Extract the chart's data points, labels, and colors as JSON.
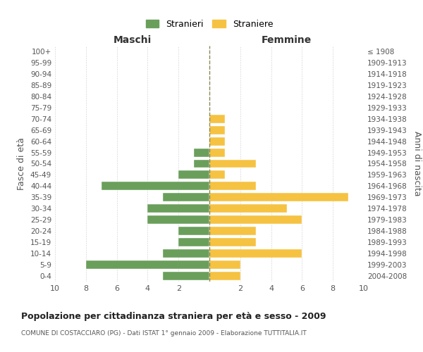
{
  "age_groups": [
    "100+",
    "95-99",
    "90-94",
    "85-89",
    "80-84",
    "75-79",
    "70-74",
    "65-69",
    "60-64",
    "55-59",
    "50-54",
    "45-49",
    "40-44",
    "35-39",
    "30-34",
    "25-29",
    "20-24",
    "15-19",
    "10-14",
    "5-9",
    "0-4"
  ],
  "birth_years": [
    "≤ 1908",
    "1909-1913",
    "1914-1918",
    "1919-1923",
    "1924-1928",
    "1929-1933",
    "1934-1938",
    "1939-1943",
    "1944-1948",
    "1949-1953",
    "1954-1958",
    "1959-1963",
    "1964-1968",
    "1969-1973",
    "1974-1978",
    "1979-1983",
    "1984-1988",
    "1989-1993",
    "1994-1998",
    "1999-2003",
    "2004-2008"
  ],
  "males": [
    0,
    0,
    0,
    0,
    0,
    0,
    0,
    0,
    0,
    1,
    1,
    2,
    7,
    3,
    4,
    4,
    2,
    2,
    3,
    8,
    3
  ],
  "females": [
    0,
    0,
    0,
    0,
    0,
    0,
    1,
    1,
    1,
    1,
    3,
    1,
    3,
    9,
    5,
    6,
    3,
    3,
    6,
    2,
    2
  ],
  "male_color": "#6a9f5b",
  "female_color": "#f5c242",
  "center_line_color": "#888855",
  "background_color": "#ffffff",
  "grid_color": "#cccccc",
  "title": "Popolazione per cittadinanza straniera per età e sesso - 2009",
  "subtitle": "COMUNE DI COSTACCIARO (PG) - Dati ISTAT 1° gennaio 2009 - Elaborazione TUTTITALIA.IT",
  "ylabel_left": "Fasce di età",
  "ylabel_right": "Anni di nascita",
  "xlabel_left": "Maschi",
  "xlabel_right": "Femmine",
  "legend_stranieri": "Stranieri",
  "legend_straniere": "Straniere",
  "xlim": 10
}
